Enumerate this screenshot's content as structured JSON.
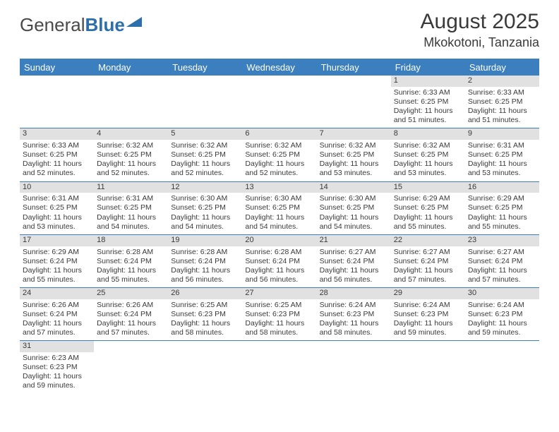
{
  "logo": {
    "part1": "General",
    "part2": "Blue"
  },
  "title": "August 2025",
  "location": "Mkokotoni, Tanzania",
  "colors": {
    "header_bar": "#3b7fbf",
    "daynum_bg": "#e1e1e1",
    "text": "#3a3a3a",
    "logo_blue": "#2c6fab",
    "background": "#ffffff"
  },
  "typography": {
    "title_fontsize": 30,
    "location_fontsize": 18,
    "dayheader_fontsize": 13,
    "cell_fontsize": 10.5
  },
  "day_labels": [
    "Sunday",
    "Monday",
    "Tuesday",
    "Wednesday",
    "Thursday",
    "Friday",
    "Saturday"
  ],
  "weeks": [
    [
      {
        "empty": true
      },
      {
        "empty": true
      },
      {
        "empty": true
      },
      {
        "empty": true
      },
      {
        "empty": true
      },
      {
        "n": "1",
        "sr": "Sunrise: 6:33 AM",
        "ss": "Sunset: 6:25 PM",
        "dl": "Daylight: 11 hours and 51 minutes."
      },
      {
        "n": "2",
        "sr": "Sunrise: 6:33 AM",
        "ss": "Sunset: 6:25 PM",
        "dl": "Daylight: 11 hours and 51 minutes."
      }
    ],
    [
      {
        "n": "3",
        "sr": "Sunrise: 6:33 AM",
        "ss": "Sunset: 6:25 PM",
        "dl": "Daylight: 11 hours and 52 minutes."
      },
      {
        "n": "4",
        "sr": "Sunrise: 6:32 AM",
        "ss": "Sunset: 6:25 PM",
        "dl": "Daylight: 11 hours and 52 minutes."
      },
      {
        "n": "5",
        "sr": "Sunrise: 6:32 AM",
        "ss": "Sunset: 6:25 PM",
        "dl": "Daylight: 11 hours and 52 minutes."
      },
      {
        "n": "6",
        "sr": "Sunrise: 6:32 AM",
        "ss": "Sunset: 6:25 PM",
        "dl": "Daylight: 11 hours and 52 minutes."
      },
      {
        "n": "7",
        "sr": "Sunrise: 6:32 AM",
        "ss": "Sunset: 6:25 PM",
        "dl": "Daylight: 11 hours and 53 minutes."
      },
      {
        "n": "8",
        "sr": "Sunrise: 6:32 AM",
        "ss": "Sunset: 6:25 PM",
        "dl": "Daylight: 11 hours and 53 minutes."
      },
      {
        "n": "9",
        "sr": "Sunrise: 6:31 AM",
        "ss": "Sunset: 6:25 PM",
        "dl": "Daylight: 11 hours and 53 minutes."
      }
    ],
    [
      {
        "n": "10",
        "sr": "Sunrise: 6:31 AM",
        "ss": "Sunset: 6:25 PM",
        "dl": "Daylight: 11 hours and 53 minutes."
      },
      {
        "n": "11",
        "sr": "Sunrise: 6:31 AM",
        "ss": "Sunset: 6:25 PM",
        "dl": "Daylight: 11 hours and 54 minutes."
      },
      {
        "n": "12",
        "sr": "Sunrise: 6:30 AM",
        "ss": "Sunset: 6:25 PM",
        "dl": "Daylight: 11 hours and 54 minutes."
      },
      {
        "n": "13",
        "sr": "Sunrise: 6:30 AM",
        "ss": "Sunset: 6:25 PM",
        "dl": "Daylight: 11 hours and 54 minutes."
      },
      {
        "n": "14",
        "sr": "Sunrise: 6:30 AM",
        "ss": "Sunset: 6:25 PM",
        "dl": "Daylight: 11 hours and 54 minutes."
      },
      {
        "n": "15",
        "sr": "Sunrise: 6:29 AM",
        "ss": "Sunset: 6:25 PM",
        "dl": "Daylight: 11 hours and 55 minutes."
      },
      {
        "n": "16",
        "sr": "Sunrise: 6:29 AM",
        "ss": "Sunset: 6:25 PM",
        "dl": "Daylight: 11 hours and 55 minutes."
      }
    ],
    [
      {
        "n": "17",
        "sr": "Sunrise: 6:29 AM",
        "ss": "Sunset: 6:24 PM",
        "dl": "Daylight: 11 hours and 55 minutes."
      },
      {
        "n": "18",
        "sr": "Sunrise: 6:28 AM",
        "ss": "Sunset: 6:24 PM",
        "dl": "Daylight: 11 hours and 55 minutes."
      },
      {
        "n": "19",
        "sr": "Sunrise: 6:28 AM",
        "ss": "Sunset: 6:24 PM",
        "dl": "Daylight: 11 hours and 56 minutes."
      },
      {
        "n": "20",
        "sr": "Sunrise: 6:28 AM",
        "ss": "Sunset: 6:24 PM",
        "dl": "Daylight: 11 hours and 56 minutes."
      },
      {
        "n": "21",
        "sr": "Sunrise: 6:27 AM",
        "ss": "Sunset: 6:24 PM",
        "dl": "Daylight: 11 hours and 56 minutes."
      },
      {
        "n": "22",
        "sr": "Sunrise: 6:27 AM",
        "ss": "Sunset: 6:24 PM",
        "dl": "Daylight: 11 hours and 57 minutes."
      },
      {
        "n": "23",
        "sr": "Sunrise: 6:27 AM",
        "ss": "Sunset: 6:24 PM",
        "dl": "Daylight: 11 hours and 57 minutes."
      }
    ],
    [
      {
        "n": "24",
        "sr": "Sunrise: 6:26 AM",
        "ss": "Sunset: 6:24 PM",
        "dl": "Daylight: 11 hours and 57 minutes."
      },
      {
        "n": "25",
        "sr": "Sunrise: 6:26 AM",
        "ss": "Sunset: 6:24 PM",
        "dl": "Daylight: 11 hours and 57 minutes."
      },
      {
        "n": "26",
        "sr": "Sunrise: 6:25 AM",
        "ss": "Sunset: 6:23 PM",
        "dl": "Daylight: 11 hours and 58 minutes."
      },
      {
        "n": "27",
        "sr": "Sunrise: 6:25 AM",
        "ss": "Sunset: 6:23 PM",
        "dl": "Daylight: 11 hours and 58 minutes."
      },
      {
        "n": "28",
        "sr": "Sunrise: 6:24 AM",
        "ss": "Sunset: 6:23 PM",
        "dl": "Daylight: 11 hours and 58 minutes."
      },
      {
        "n": "29",
        "sr": "Sunrise: 6:24 AM",
        "ss": "Sunset: 6:23 PM",
        "dl": "Daylight: 11 hours and 59 minutes."
      },
      {
        "n": "30",
        "sr": "Sunrise: 6:24 AM",
        "ss": "Sunset: 6:23 PM",
        "dl": "Daylight: 11 hours and 59 minutes."
      }
    ],
    [
      {
        "n": "31",
        "sr": "Sunrise: 6:23 AM",
        "ss": "Sunset: 6:23 PM",
        "dl": "Daylight: 11 hours and 59 minutes."
      },
      {
        "empty": true
      },
      {
        "empty": true
      },
      {
        "empty": true
      },
      {
        "empty": true
      },
      {
        "empty": true
      },
      {
        "empty": true
      }
    ]
  ]
}
